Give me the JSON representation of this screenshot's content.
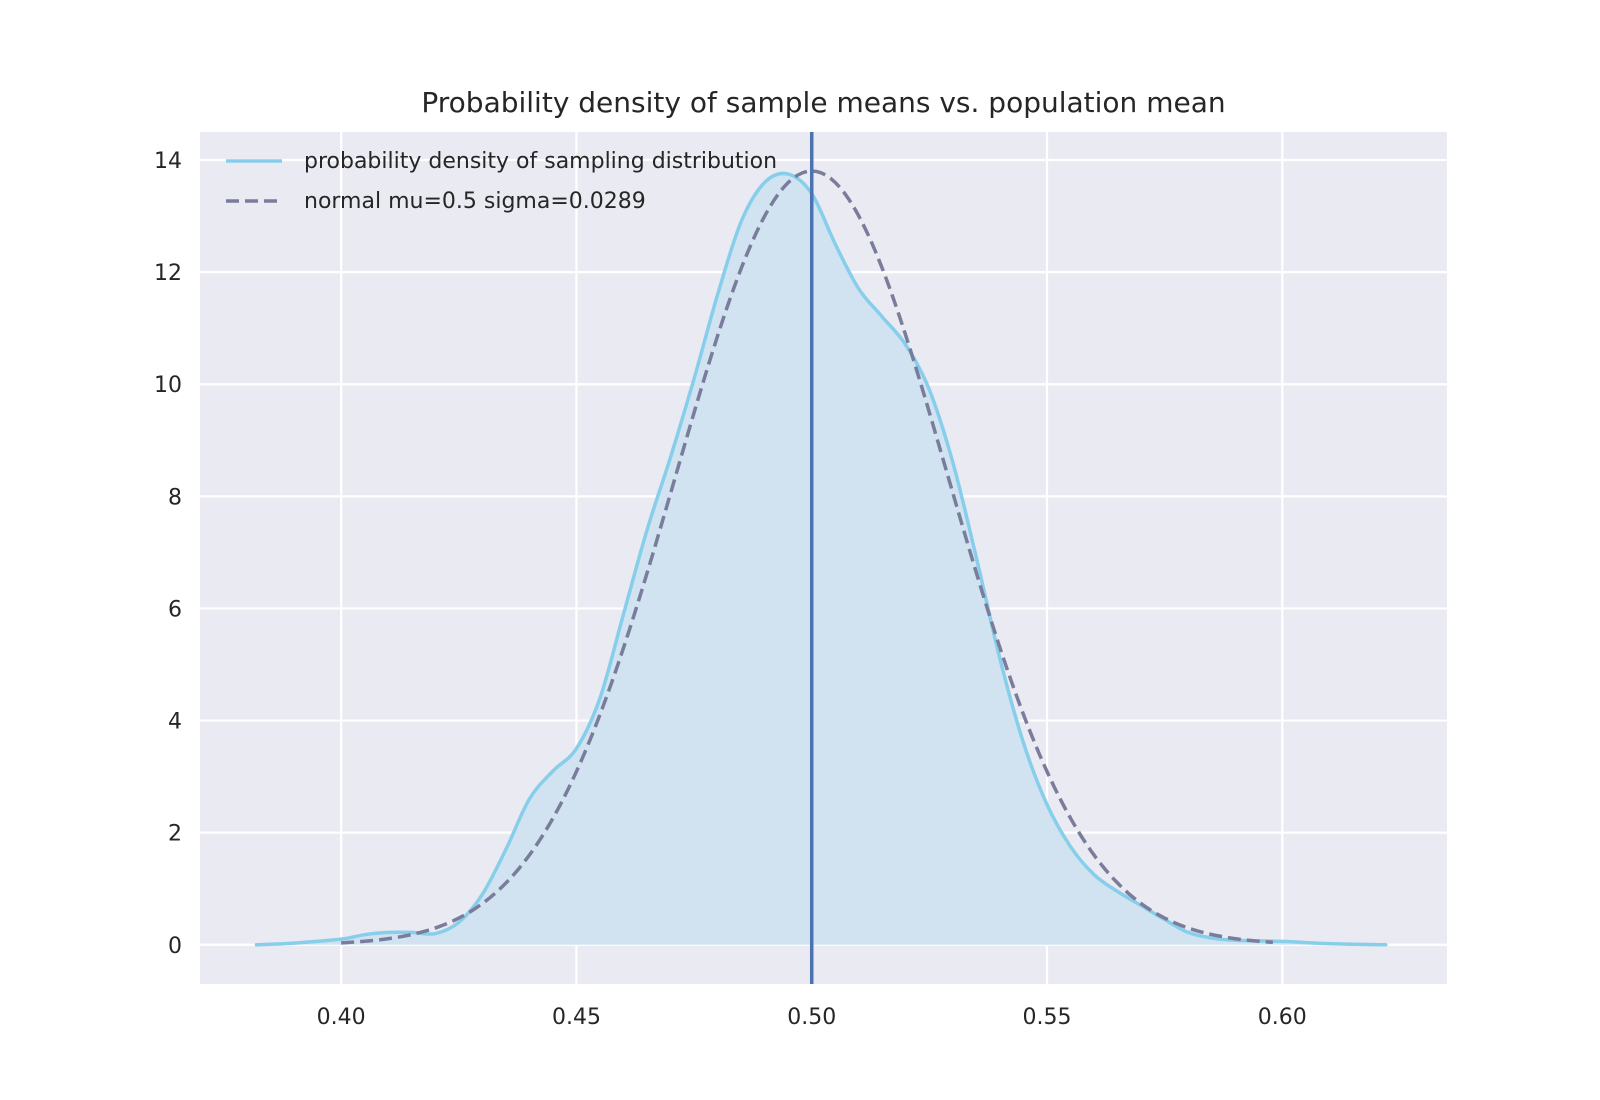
{
  "chart_data": {
    "type": "line",
    "title": "Probability density of sample means vs. population mean",
    "xlabel": "",
    "ylabel": "",
    "xlim": [
      0.37,
      0.635
    ],
    "ylim": [
      -0.7,
      14.5
    ],
    "x_ticks": [
      0.4,
      0.45,
      0.5,
      0.55,
      0.6
    ],
    "x_tick_labels": [
      "0.40",
      "0.45",
      "0.50",
      "0.55",
      "0.60"
    ],
    "y_ticks": [
      0,
      2,
      4,
      6,
      8,
      10,
      12,
      14
    ],
    "y_tick_labels": [
      "0",
      "2",
      "4",
      "6",
      "8",
      "10",
      "12",
      "14"
    ],
    "grid": true,
    "legend_position": "top-left",
    "vertical_line": {
      "x": 0.5,
      "color": "#4c72b0"
    },
    "series": [
      {
        "name": "probability density of sampling distribution",
        "style": "solid",
        "color": "#87ceeb",
        "fill": "#d1e3f0",
        "x": [
          0.382,
          0.39,
          0.4,
          0.405,
          0.41,
          0.415,
          0.42,
          0.425,
          0.43,
          0.435,
          0.44,
          0.445,
          0.45,
          0.455,
          0.46,
          0.465,
          0.47,
          0.475,
          0.48,
          0.485,
          0.49,
          0.495,
          0.5,
          0.505,
          0.51,
          0.515,
          0.52,
          0.525,
          0.53,
          0.535,
          0.54,
          0.545,
          0.55,
          0.555,
          0.56,
          0.565,
          0.57,
          0.575,
          0.58,
          0.585,
          0.59,
          0.6,
          0.61,
          0.622
        ],
        "y": [
          0.0,
          0.03,
          0.1,
          0.18,
          0.22,
          0.22,
          0.2,
          0.4,
          0.9,
          1.7,
          2.6,
          3.1,
          3.5,
          4.4,
          5.9,
          7.4,
          8.7,
          10.1,
          11.6,
          12.9,
          13.6,
          13.75,
          13.4,
          12.5,
          11.7,
          11.2,
          10.7,
          9.9,
          8.6,
          6.9,
          5.1,
          3.6,
          2.5,
          1.75,
          1.25,
          0.95,
          0.7,
          0.45,
          0.22,
          0.12,
          0.08,
          0.06,
          0.02,
          0.0
        ]
      },
      {
        "name": "normal mu=0.5 sigma=0.0289",
        "style": "dashed",
        "color": "#7a7c9c",
        "mu": 0.5,
        "sigma": 0.0289,
        "x_range": [
          0.4,
          0.598
        ]
      }
    ]
  }
}
